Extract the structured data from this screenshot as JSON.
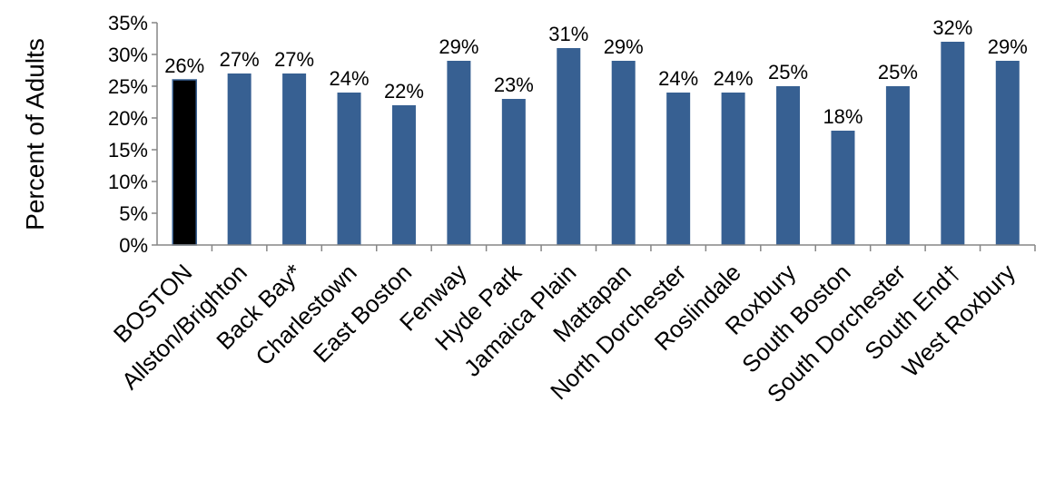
{
  "chart_data": {
    "type": "bar",
    "ylabel": "Percent of Adults",
    "xlabel": "",
    "ylim": [
      0,
      35
    ],
    "yticks": [
      "0%",
      "5%",
      "10%",
      "15%",
      "20%",
      "25%",
      "30%",
      "35%"
    ],
    "ytick_values": [
      0,
      5,
      10,
      15,
      20,
      25,
      30,
      35
    ],
    "categories": [
      "BOSTON",
      "Allston/Brighton",
      "Back Bay*",
      "Charlestown",
      "East Boston",
      "Fenway",
      "Hyde Park",
      "Jamaica Plain",
      "Mattapan",
      "North Dorchester",
      "Roslindale",
      "Roxbury",
      "South Boston",
      "South Dorchester",
      "South End†",
      "West Roxbury"
    ],
    "values": [
      26,
      27,
      27,
      24,
      22,
      29,
      23,
      31,
      29,
      24,
      24,
      25,
      18,
      25,
      32,
      29
    ],
    "data_labels": [
      "26%",
      "27%",
      "27%",
      "24%",
      "22%",
      "29%",
      "23%",
      "31%",
      "29%",
      "24%",
      "24%",
      "25%",
      "18%",
      "25%",
      "32%",
      "29%"
    ],
    "highlight_index": 0,
    "colors": {
      "bar": "#376092",
      "highlight": "#000000",
      "axis": "#868686"
    },
    "grid": false,
    "legend": "none"
  }
}
